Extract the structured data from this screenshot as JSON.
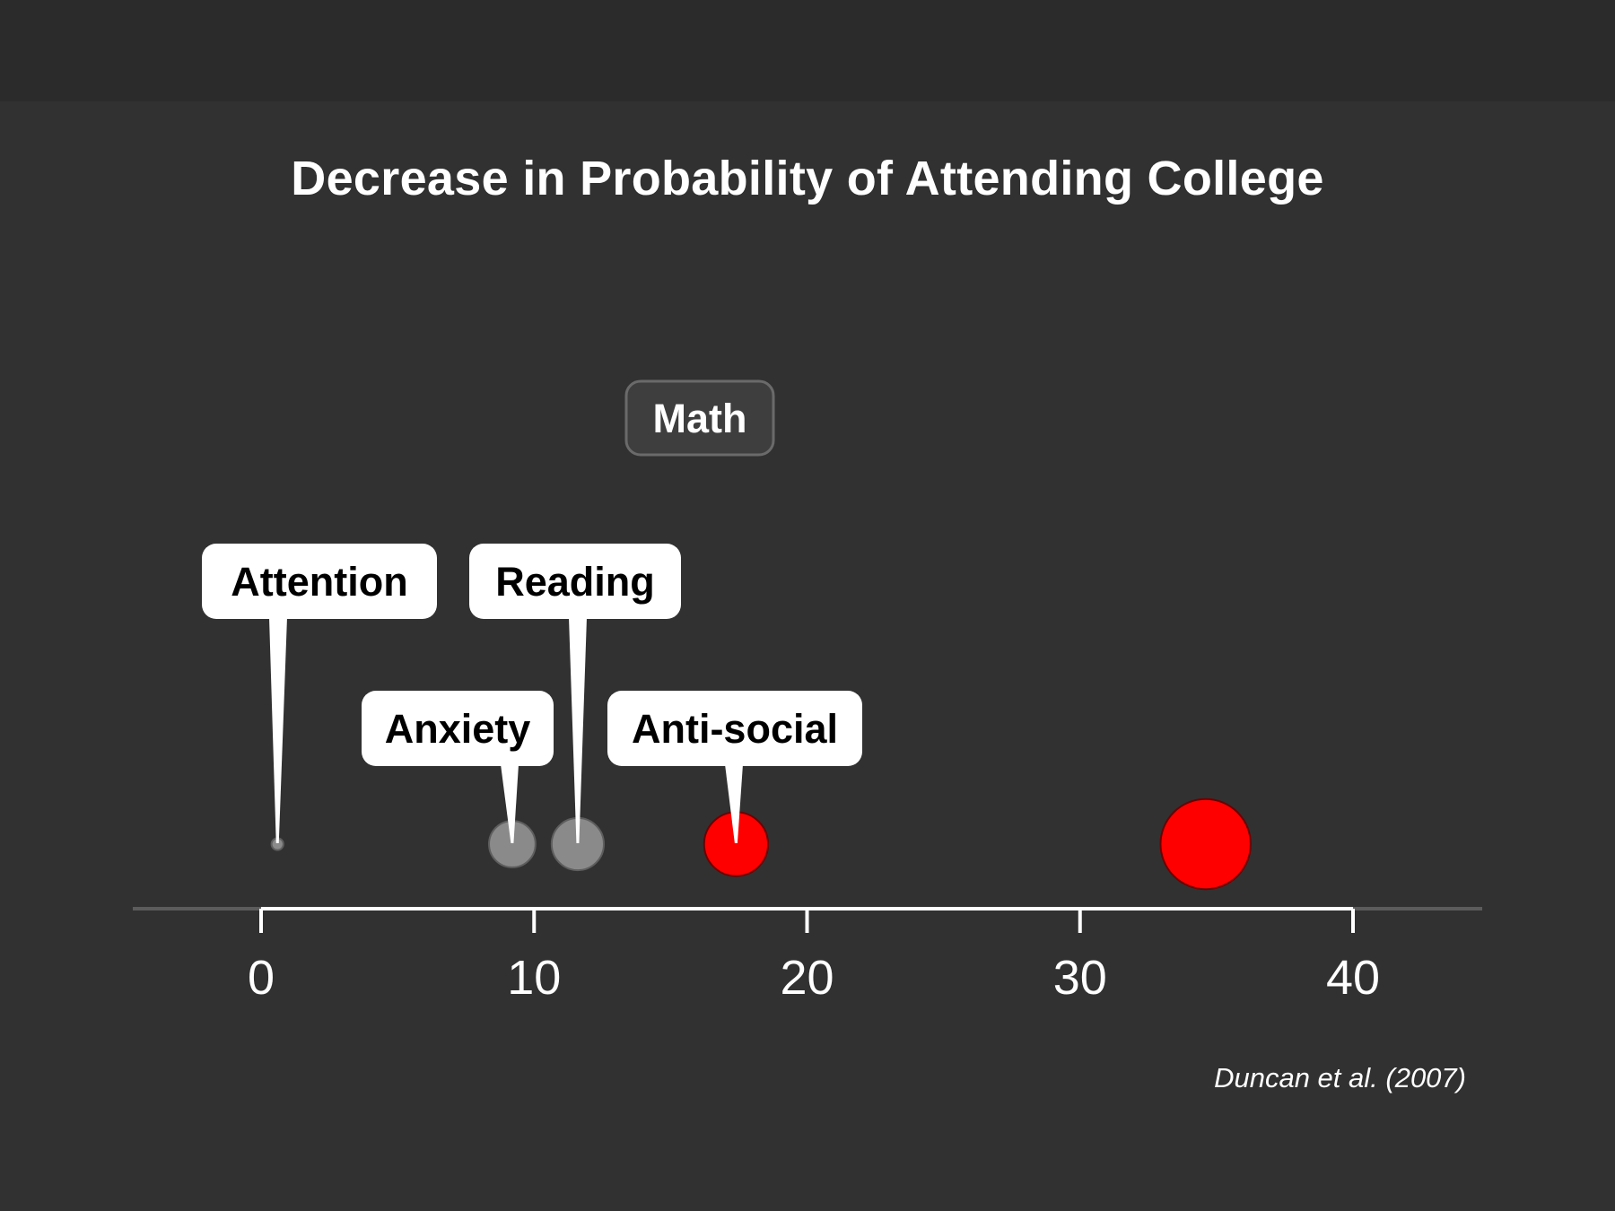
{
  "chart_data": {
    "type": "scatter",
    "title": "Decrease in Probability of Attending College",
    "xlabel": "",
    "ylabel": "",
    "xlim": [
      0,
      40
    ],
    "x_ticks": [
      0,
      10,
      20,
      30,
      40
    ],
    "grid": false,
    "legend": "none",
    "points": [
      {
        "label": "Attention",
        "x": 0.6,
        "color": "#8a8a8a",
        "highlight": false
      },
      {
        "label": "Anxiety",
        "x": 9.2,
        "color": "#8a8a8a",
        "highlight": false
      },
      {
        "label": "Reading",
        "x": 11.6,
        "color": "#8a8a8a",
        "highlight": false
      },
      {
        "label": "Anti-social",
        "x": 17.4,
        "color": "#ff0000",
        "highlight": true
      },
      {
        "label": "Math",
        "x": 34.6,
        "color": "#ff0000",
        "highlight": true
      }
    ],
    "source": "Duncan et al. (2007)"
  },
  "colors": {
    "background": "#313131",
    "axis": "#ffffff",
    "highlight": "#ff0000",
    "muted": "#8a8a8a"
  }
}
